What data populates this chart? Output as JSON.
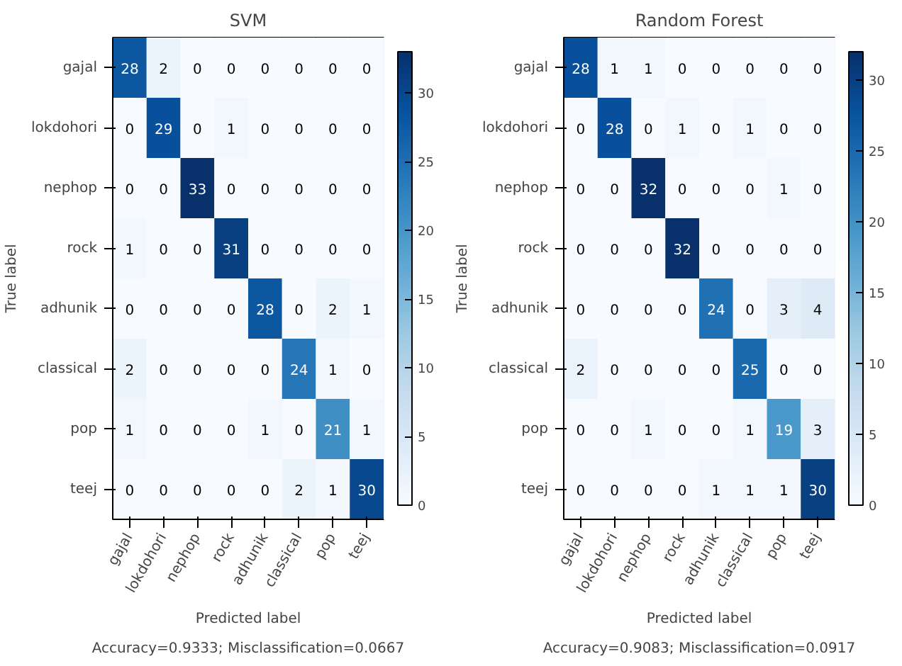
{
  "chart_data": [
    {
      "type": "heatmap",
      "title": "SVM",
      "xlabel": "Predicted label",
      "ylabel": "True label",
      "annotations": [
        "Accuracy=0.9333; Misclassification=0.0667"
      ],
      "categories": [
        "gajal",
        "lokdohori",
        "nephop",
        "rock",
        "adhunik",
        "classical",
        "pop",
        "teej"
      ],
      "y_categories": [
        "gajal",
        "lokdohori",
        "nephop",
        "rock",
        "adhunik",
        "classical",
        "pop",
        "teej"
      ],
      "cells": [
        [
          28,
          2,
          0,
          0,
          0,
          0,
          0,
          0
        ],
        [
          0,
          29,
          0,
          1,
          0,
          0,
          0,
          0
        ],
        [
          0,
          0,
          33,
          0,
          0,
          0,
          0,
          0
        ],
        [
          1,
          0,
          0,
          31,
          0,
          0,
          0,
          0
        ],
        [
          0,
          0,
          0,
          0,
          28,
          0,
          2,
          1
        ],
        [
          2,
          0,
          0,
          0,
          0,
          24,
          1,
          0
        ],
        [
          1,
          0,
          0,
          0,
          1,
          0,
          21,
          1
        ],
        [
          0,
          0,
          0,
          0,
          0,
          2,
          1,
          30
        ]
      ],
      "clim": [
        0,
        33
      ],
      "cticks": [
        0,
        5,
        10,
        15,
        20,
        25,
        30
      ],
      "data_labels": true
    },
    {
      "type": "heatmap",
      "title": "Random Forest",
      "xlabel": "Predicted label",
      "ylabel": "True label",
      "annotations": [
        "Accuracy=0.9083; Misclassification=0.0917"
      ],
      "categories": [
        "gajal",
        "lokdohori",
        "nephop",
        "rock",
        "adhunik",
        "classical",
        "pop",
        "teej"
      ],
      "y_categories": [
        "gajal",
        "lokdohori",
        "nephop",
        "rock",
        "adhunik",
        "classical",
        "pop",
        "teej"
      ],
      "cells": [
        [
          28,
          1,
          1,
          0,
          0,
          0,
          0,
          0
        ],
        [
          0,
          28,
          0,
          1,
          0,
          1,
          0,
          0
        ],
        [
          0,
          0,
          32,
          0,
          0,
          0,
          1,
          0
        ],
        [
          0,
          0,
          0,
          32,
          0,
          0,
          0,
          0
        ],
        [
          0,
          0,
          0,
          0,
          24,
          0,
          3,
          4
        ],
        [
          2,
          0,
          0,
          0,
          0,
          25,
          0,
          0
        ],
        [
          0,
          0,
          1,
          0,
          0,
          1,
          19,
          3
        ],
        [
          0,
          0,
          0,
          0,
          1,
          1,
          1,
          30
        ]
      ],
      "clim": [
        0,
        32
      ],
      "cticks": [
        0,
        5,
        10,
        15,
        20,
        25,
        30
      ],
      "data_labels": true
    }
  ]
}
